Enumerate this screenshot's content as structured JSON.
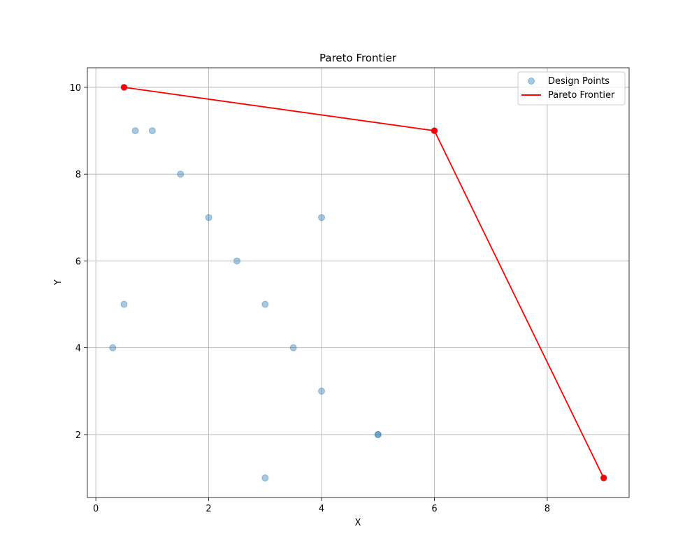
{
  "chart_data": {
    "type": "scatter",
    "title": "Pareto Frontier",
    "xlabel": "X",
    "ylabel": "Y",
    "xlim": [
      -0.15,
      9.45
    ],
    "ylim": [
      0.55,
      10.45
    ],
    "xticks": [
      0,
      2,
      4,
      6,
      8
    ],
    "yticks": [
      2,
      4,
      6,
      8,
      10
    ],
    "grid": true,
    "legend_position": "top-right",
    "series": [
      {
        "name": "Design Points",
        "kind": "scatter",
        "color": "#1f77b4",
        "alpha": 0.4,
        "points": [
          {
            "x": 0.5,
            "y": 10
          },
          {
            "x": 0.7,
            "y": 9
          },
          {
            "x": 1,
            "y": 9
          },
          {
            "x": 1.5,
            "y": 8
          },
          {
            "x": 2,
            "y": 7
          },
          {
            "x": 4,
            "y": 7
          },
          {
            "x": 2.5,
            "y": 6
          },
          {
            "x": 0.5,
            "y": 5
          },
          {
            "x": 3,
            "y": 5
          },
          {
            "x": 0.3,
            "y": 4
          },
          {
            "x": 3.5,
            "y": 4
          },
          {
            "x": 4,
            "y": 3
          },
          {
            "x": 5,
            "y": 2
          },
          {
            "x": 5,
            "y": 2
          },
          {
            "x": 3,
            "y": 1
          },
          {
            "x": 6,
            "y": 9
          },
          {
            "x": 9,
            "y": 1
          }
        ]
      },
      {
        "name": "Pareto Frontier",
        "kind": "line",
        "color": "#ff0000",
        "points": [
          {
            "x": 0.5,
            "y": 10
          },
          {
            "x": 6,
            "y": 9
          },
          {
            "x": 9,
            "y": 1
          }
        ]
      }
    ]
  }
}
